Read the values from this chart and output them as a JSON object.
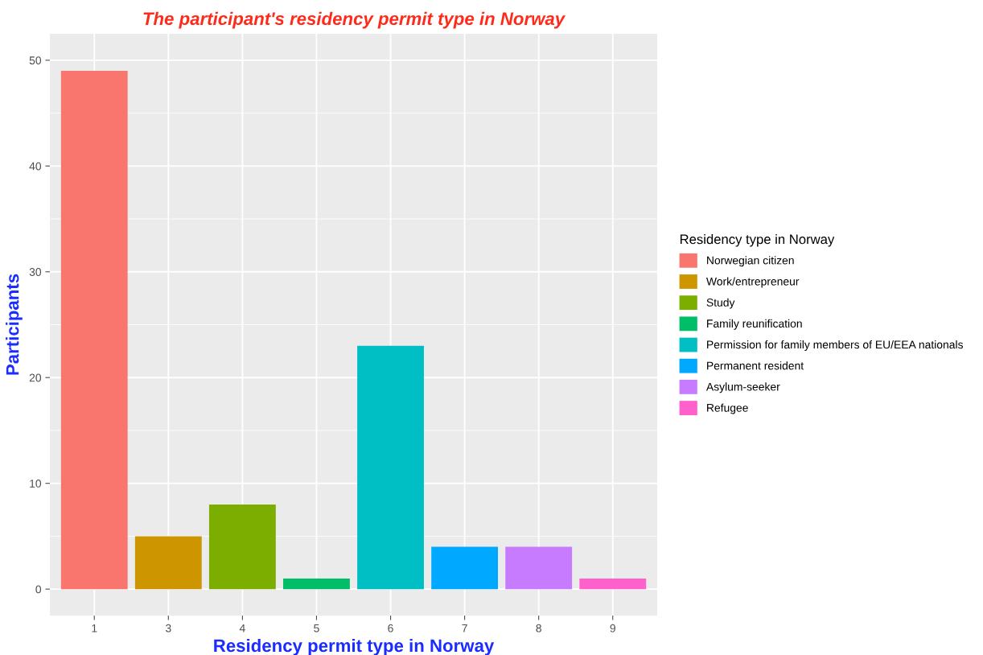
{
  "chart_data": {
    "type": "bar",
    "title": "The participant's residency permit type in Norway",
    "xlabel": "Residency permit type in Norway",
    "ylabel": "Participants",
    "legend_title": "Residency type in Norway",
    "categories": [
      "1",
      "3",
      "4",
      "5",
      "6",
      "7",
      "8",
      "9"
    ],
    "series": [
      {
        "name": "Norwegian citizen",
        "color": "#f8766d",
        "values": [
          49,
          null,
          null,
          null,
          null,
          null,
          null,
          null
        ]
      },
      {
        "name": "Work/entrepreneur",
        "color": "#cd9600",
        "values": [
          null,
          5,
          null,
          null,
          null,
          null,
          null,
          null
        ]
      },
      {
        "name": "Study",
        "color": "#7cae00",
        "values": [
          null,
          null,
          8,
          null,
          null,
          null,
          null,
          null
        ]
      },
      {
        "name": "Family reunification",
        "color": "#00be67",
        "values": [
          null,
          null,
          null,
          1,
          null,
          null,
          null,
          null
        ]
      },
      {
        "name": "Permission for family members of EU/EEA nationals",
        "color": "#00bfc4",
        "values": [
          null,
          null,
          null,
          null,
          23,
          null,
          null,
          null
        ]
      },
      {
        "name": "Permanent resident",
        "color": "#00a9ff",
        "values": [
          null,
          null,
          null,
          null,
          null,
          4,
          null,
          null
        ]
      },
      {
        "name": "Asylum-seeker",
        "color": "#c77cff",
        "values": [
          null,
          null,
          null,
          null,
          null,
          null,
          4,
          null
        ]
      },
      {
        "name": "Refugee",
        "color": "#ff61cc",
        "values": [
          null,
          null,
          null,
          null,
          null,
          null,
          null,
          1
        ]
      }
    ],
    "ylim": [
      -2.5,
      52.5
    ],
    "yticks": [
      0,
      10,
      20,
      30,
      40,
      50
    ],
    "grid": true,
    "legend": "right"
  }
}
